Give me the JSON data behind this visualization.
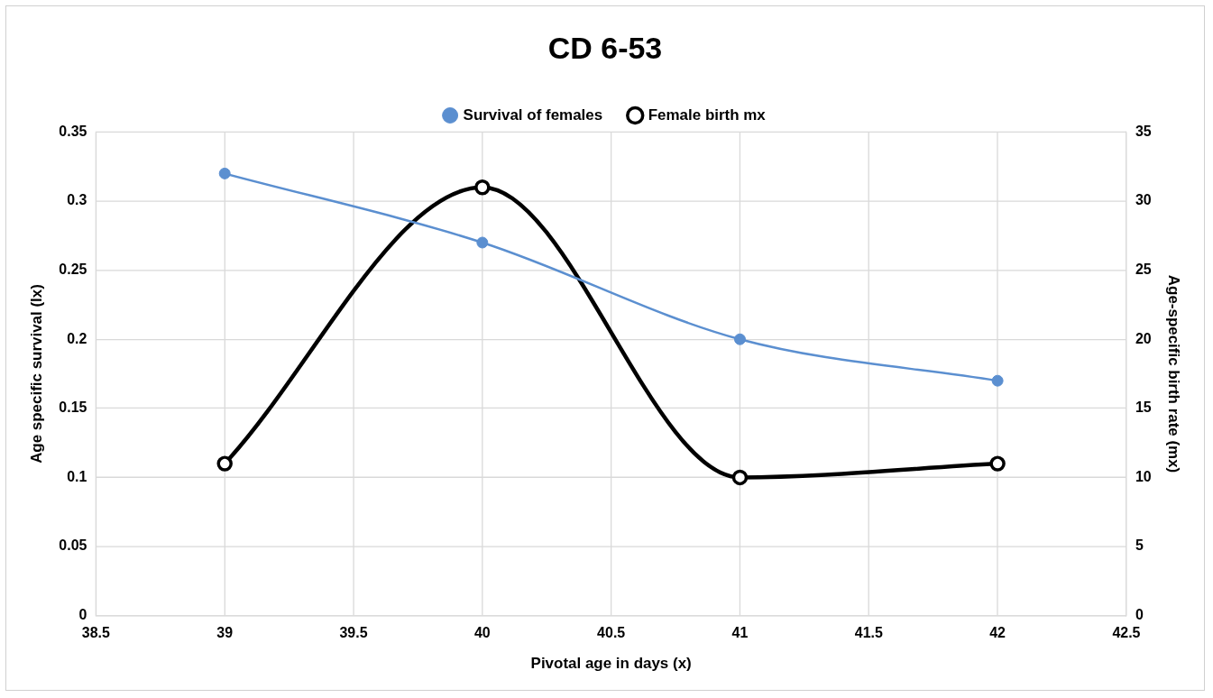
{
  "chart_data": {
    "type": "line",
    "title": "CD 6-53",
    "xlabel": "Pivotal age in days (x)",
    "ylabel": "Age specific survival (lx)",
    "y2label": "Age-specific birth rate (mx)",
    "x": [
      39,
      40,
      41,
      42
    ],
    "series": [
      {
        "name": "Survival of females",
        "color": "#5b8fd0",
        "values": [
          0.32,
          0.27,
          0.2,
          0.17
        ]
      },
      {
        "name": "Female birth mx",
        "color": "#000000",
        "axis": "y2",
        "values": [
          11,
          31,
          10,
          11
        ]
      }
    ],
    "xlim": [
      38.5,
      42.5
    ],
    "xticks": [
      38.5,
      39,
      39.5,
      40,
      40.5,
      41,
      41.5,
      42,
      42.5
    ],
    "ylim": [
      0,
      0.35
    ],
    "yticks": [
      0,
      0.05,
      0.1,
      0.15,
      0.2,
      0.25,
      0.3,
      0.35
    ],
    "y2lim": [
      0,
      35
    ],
    "y2ticks": [
      0,
      5,
      10,
      15,
      20,
      25,
      30,
      35
    ],
    "grid": true,
    "legend": "top",
    "marker": "circle"
  }
}
